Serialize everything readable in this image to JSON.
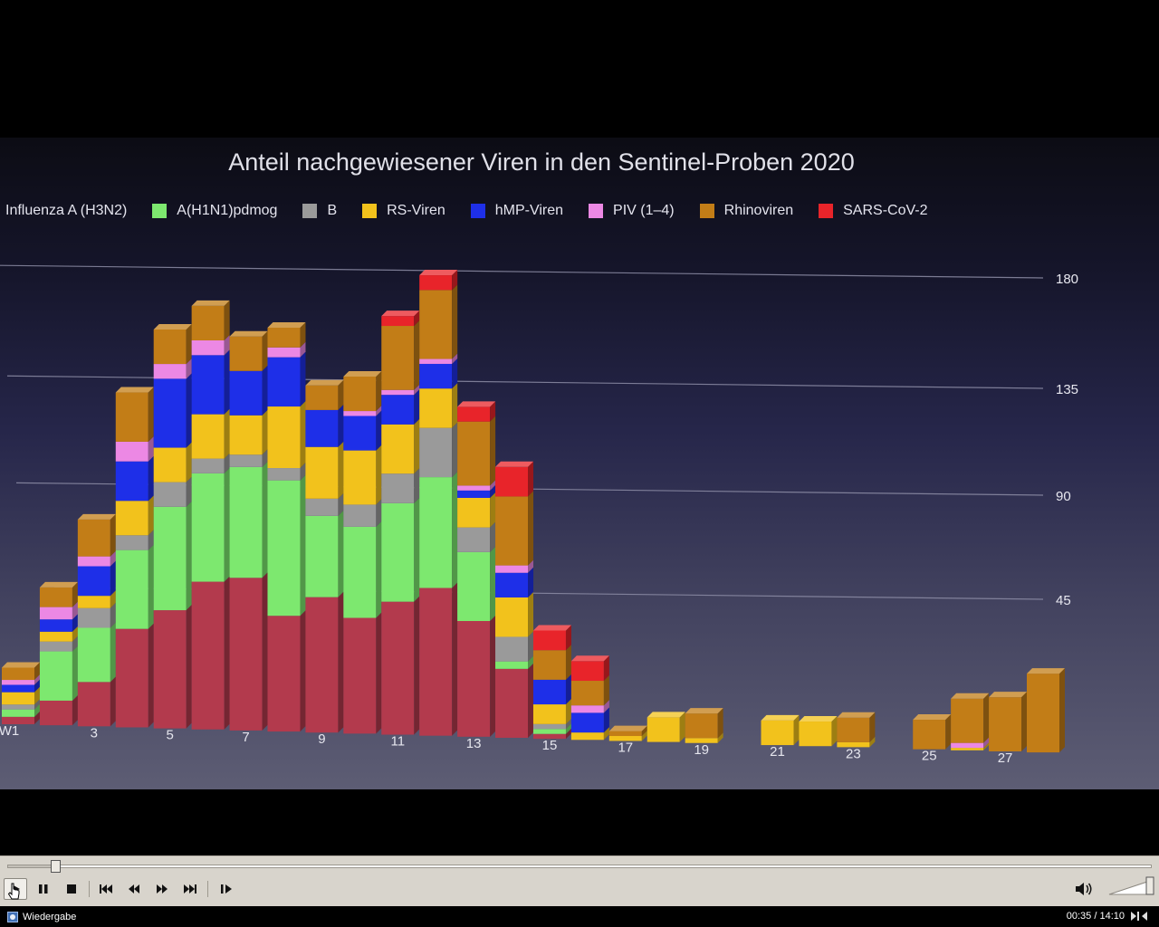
{
  "window": {
    "status_text": "Wiedergabe",
    "time": "00:35 / 14:10",
    "progress": 0.041
  },
  "chart_data": {
    "type": "bar",
    "stacked": true,
    "title": "Anteil nachgewiesener Viren in den Sentinel-Proben 2020",
    "y_ticks": [
      "45",
      "90",
      "135",
      "180"
    ],
    "ylim": [
      0,
      180
    ],
    "x_tick_labels": [
      "W1",
      "3",
      "5",
      "7",
      "9",
      "11",
      "13",
      "15",
      "17",
      "19",
      "21",
      "23",
      "25",
      "27"
    ],
    "categories": [
      "1",
      "2",
      "3",
      "4",
      "5",
      "6",
      "7",
      "8",
      "9",
      "10",
      "11",
      "12",
      "13",
      "14",
      "15",
      "16",
      "17",
      "18",
      "19",
      "20",
      "21",
      "22",
      "23",
      "24",
      "25",
      "26",
      "27",
      "28"
    ],
    "series": [
      {
        "name": "Influenza A (H3N2)",
        "color": "#b33a4d",
        "values": [
          3,
          10,
          18,
          40,
          48,
          60,
          62,
          47,
          55,
          47,
          54,
          60,
          47,
          28,
          2,
          0,
          0,
          0,
          0,
          0,
          0,
          0,
          0,
          0,
          0,
          0,
          0,
          0
        ]
      },
      {
        "name": "A(H1N1)pdmog",
        "color": "#7de86f",
        "values": [
          3,
          20,
          22,
          32,
          42,
          44,
          45,
          55,
          33,
          37,
          40,
          45,
          28,
          3,
          2,
          0,
          0,
          0,
          0,
          0,
          0,
          0,
          0,
          0,
          0,
          0,
          0,
          0
        ]
      },
      {
        "name": "B",
        "color": "#9a9a9a",
        "values": [
          2,
          4,
          8,
          6,
          10,
          6,
          5,
          5,
          7,
          9,
          12,
          20,
          10,
          10,
          2,
          0,
          0,
          0,
          0,
          0,
          0,
          0,
          0,
          0,
          0,
          0,
          0,
          0
        ]
      },
      {
        "name": "RS-Viren",
        "color": "#f2c21c",
        "values": [
          5,
          4,
          5,
          14,
          14,
          18,
          16,
          25,
          21,
          22,
          20,
          16,
          12,
          16,
          8,
          3,
          2,
          10,
          2,
          0,
          10,
          10,
          2,
          0,
          0,
          1,
          0,
          0
        ]
      },
      {
        "name": "hMP-Viren",
        "color": "#1e2fe8",
        "values": [
          3,
          5,
          12,
          16,
          28,
          24,
          18,
          20,
          15,
          14,
          12,
          10,
          3,
          10,
          10,
          8,
          0,
          0,
          0,
          0,
          0,
          0,
          0,
          0,
          0,
          0,
          0,
          0
        ]
      },
      {
        "name": "PIV (1–4)",
        "color": "#ec88e4",
        "values": [
          2,
          5,
          4,
          8,
          6,
          6,
          0,
          4,
          0,
          2,
          2,
          2,
          2,
          3,
          0,
          3,
          0,
          0,
          0,
          0,
          0,
          0,
          0,
          0,
          0,
          2,
          0,
          0
        ]
      },
      {
        "name": "Rhinoviren",
        "color": "#c27d17",
        "values": [
          5,
          8,
          15,
          20,
          14,
          14,
          14,
          8,
          10,
          14,
          26,
          28,
          26,
          28,
          12,
          10,
          2,
          0,
          10,
          0,
          0,
          0,
          10,
          0,
          12,
          18,
          22,
          32
        ]
      },
      {
        "name": "SARS-CoV-2",
        "color": "#e8242a",
        "values": [
          0,
          0,
          0,
          0,
          0,
          0,
          0,
          0,
          0,
          0,
          4,
          6,
          6,
          12,
          8,
          8,
          0,
          0,
          0,
          0,
          0,
          0,
          0,
          0,
          0,
          0,
          0,
          0
        ]
      }
    ],
    "legend_position": "top-left",
    "grid": true
  }
}
